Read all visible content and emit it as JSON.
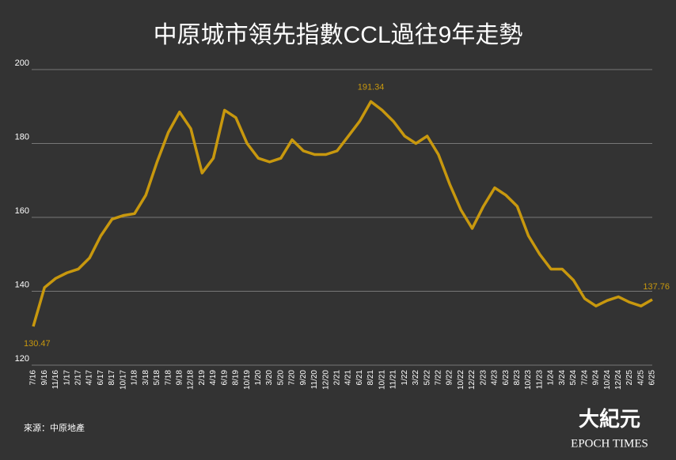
{
  "chart_data": {
    "type": "line",
    "title": "中原城市領先指數CCL過往9年走勢",
    "categories": [
      "7/16",
      "9/16",
      "11/16",
      "1/17",
      "2/17",
      "4/17",
      "6/17",
      "8/17",
      "10/17",
      "1/18",
      "3/18",
      "5/18",
      "7/18",
      "9/18",
      "12/18",
      "2/19",
      "4/19",
      "6/19",
      "8/19",
      "10/19",
      "1/20",
      "3/20",
      "5/20",
      "7/20",
      "9/20",
      "11/20",
      "12/20",
      "2/21",
      "4/21",
      "6/21",
      "8/21",
      "10/21",
      "11/21",
      "1/22",
      "3/22",
      "5/22",
      "7/22",
      "9/22",
      "10/22",
      "12/22",
      "2/23",
      "4/23",
      "6/23",
      "8/23",
      "10/23",
      "11/23",
      "1/24",
      "3/24",
      "5/24",
      "7/24",
      "9/24",
      "10/24",
      "12/24",
      "2/25",
      "4/25",
      "6/25"
    ],
    "series": [
      {
        "name": "CCL",
        "color": "#c8980e",
        "values": [
          130.47,
          141,
          143.5,
          145,
          146,
          149,
          155,
          159.5,
          160.5,
          161,
          166,
          175,
          183,
          188.5,
          184,
          172,
          176,
          189,
          187,
          180,
          176,
          175,
          176,
          181,
          178,
          177,
          177,
          178,
          182,
          186,
          191.34,
          189,
          186,
          182,
          180,
          182,
          177,
          169,
          162,
          157,
          163,
          168,
          166,
          163,
          155,
          150,
          146,
          146,
          143,
          138,
          136,
          137.5,
          138.5,
          137,
          136,
          137.76
        ]
      }
    ],
    "ylim": [
      120,
      200
    ],
    "yticks": [
      120,
      140,
      160,
      180,
      200
    ],
    "grid": true,
    "source": "來源：中原地產",
    "logo": "大紀元",
    "logo_sub": "EPOCH TIMES"
  }
}
